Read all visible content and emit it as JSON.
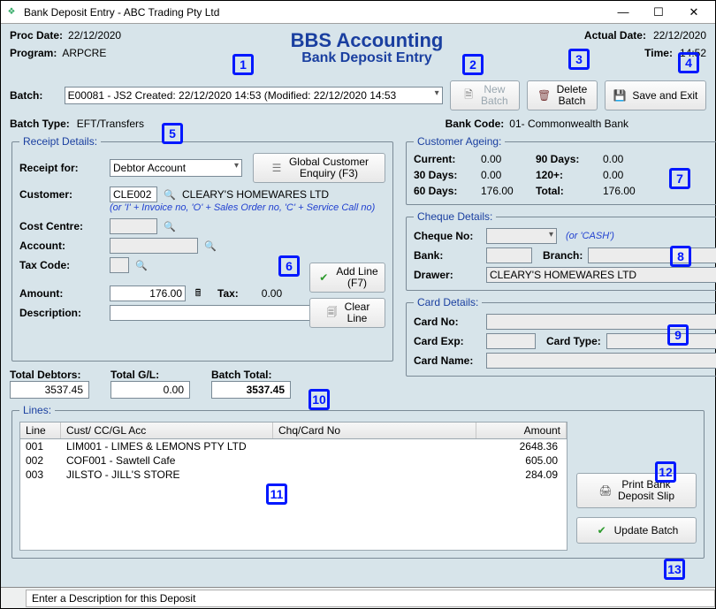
{
  "window_title": "Bank Deposit Entry - ABC Trading Pty Ltd",
  "header": {
    "proc_date_label": "Proc Date:",
    "proc_date": "22/12/2020",
    "program_label": "Program:",
    "program": "ARPCRE",
    "brand_title": "BBS Accounting",
    "brand_subtitle": "Bank Deposit Entry",
    "actual_date_label": "Actual Date:",
    "actual_date": "22/12/2020",
    "time_label": "Time:",
    "time": "14:52"
  },
  "batch": {
    "label": "Batch:",
    "selected": "E00081 - JS2 Created: 22/12/2020 14:53 (Modified: 22/12/2020 14:53",
    "new_batch": "New\nBatch",
    "delete_batch": "Delete\nBatch",
    "save_exit": "Save and Exit",
    "batch_type_label": "Batch Type:",
    "batch_type": "EFT/Transfers",
    "bank_code_label": "Bank Code:",
    "bank_code": "01- Commonwealth Bank"
  },
  "receipt": {
    "legend": "Receipt Details:",
    "receipt_for_label": "Receipt for:",
    "receipt_for": "Debtor Account",
    "global_enquiry": "Global Customer\nEnquiry (F3)",
    "customer_label": "Customer:",
    "customer_code": "CLE002",
    "customer_name": "CLEARY'S HOMEWARES LTD",
    "customer_hint": "(or 'I' + Invoice no, 'O' + Sales Order no, 'C' + Service Call no)",
    "cost_centre_label": "Cost Centre:",
    "account_label": "Account:",
    "tax_code_label": "Tax Code:",
    "amount_label": "Amount:",
    "amount": "176.00",
    "tax_label": "Tax:",
    "tax": "0.00",
    "description_label": "Description:",
    "add_line": "Add Line\n(F7)",
    "clear_line": "Clear\nLine"
  },
  "ageing": {
    "legend": "Customer Ageing:",
    "current_label": "Current:",
    "current": "0.00",
    "d30_label": "30 Days:",
    "d30": "0.00",
    "d60_label": "60 Days:",
    "d60": "176.00",
    "d90_label": "90 Days:",
    "d90": "0.00",
    "d120_label": "120+:",
    "d120": "0.00",
    "total_label": "Total:",
    "total": "176.00"
  },
  "cheque": {
    "legend": "Cheque Details:",
    "no_label": "Cheque No:",
    "cash_hint": "(or 'CASH')",
    "bank_label": "Bank:",
    "branch_label": "Branch:",
    "drawer_label": "Drawer:",
    "drawer": "CLEARY'S HOMEWARES LTD"
  },
  "card": {
    "legend": "Card Details:",
    "no_label": "Card No:",
    "exp_label": "Card Exp:",
    "type_label": "Card Type:",
    "name_label": "Card Name:"
  },
  "totals": {
    "debtors_label": "Total Debtors:",
    "debtors": "3537.45",
    "gl_label": "Total G/L:",
    "gl": "0.00",
    "batch_label": "Batch Total:",
    "batch": "3537.45"
  },
  "lines": {
    "legend": "Lines:",
    "columns": {
      "line": "Line",
      "acc": "Cust/ CC/GL Acc",
      "chq": "Chq/Card No",
      "amount": "Amount"
    },
    "rows": [
      {
        "line": "001",
        "acc": "LIM001 - LIMES & LEMONS PTY LTD",
        "chq": "",
        "amount": "2648.36"
      },
      {
        "line": "002",
        "acc": "COF001 - Sawtell Cafe",
        "chq": "",
        "amount": "605.00"
      },
      {
        "line": "003",
        "acc": "JILSTO - JILL'S STORE",
        "chq": "",
        "amount": "284.09"
      }
    ]
  },
  "side_buttons": {
    "print": "Print Bank\nDeposit Slip",
    "update": "Update Batch"
  },
  "statusbar": "Enter a Description for this Deposit",
  "annotations": [
    "1",
    "2",
    "3",
    "4",
    "5",
    "6",
    "7",
    "8",
    "9",
    "10",
    "11",
    "12",
    "13"
  ],
  "colors": {
    "bg": "#d7e4ea",
    "accent": "#1a3fa0",
    "annotation": "#0018ff"
  }
}
